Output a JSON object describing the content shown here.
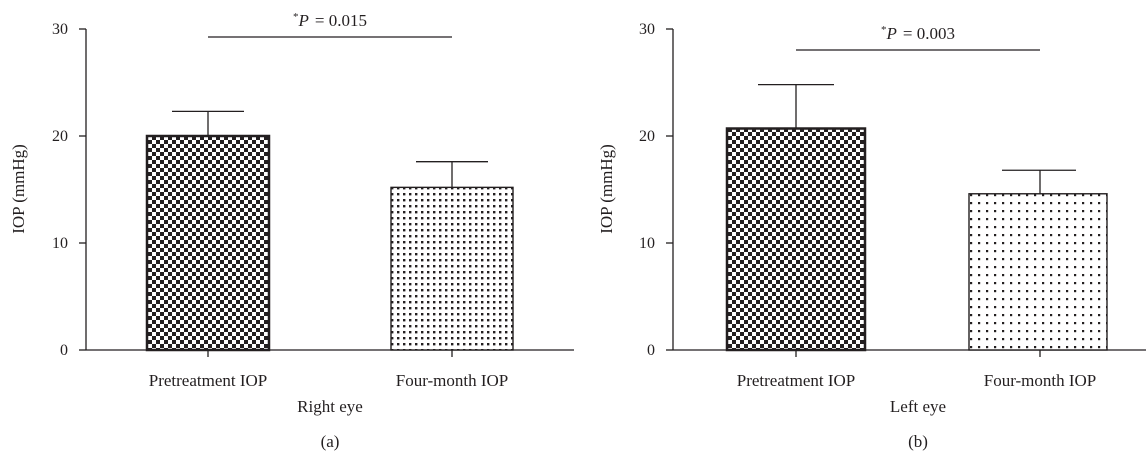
{
  "chart_data": [
    {
      "type": "bar",
      "panel_label": "(a)",
      "xlabel": "Right eye",
      "ylabel": "IOP (mmHg)",
      "ylim": [
        0,
        30
      ],
      "yticks": [
        "0",
        "10",
        "20",
        "30"
      ],
      "categories": [
        "Pretreatment IOP",
        "Four-month IOP"
      ],
      "values": [
        20.0,
        15.2
      ],
      "error_upper": [
        2.3,
        2.4
      ],
      "patterns": [
        "checkerboard",
        "dots-dense"
      ],
      "annotation": {
        "prefix": "*",
        "p_symbol": "P",
        "value_text": "= 0.015"
      }
    },
    {
      "type": "bar",
      "panel_label": "(b)",
      "xlabel": "Left eye",
      "ylabel": "IOP (mmHg)",
      "ylim": [
        0,
        30
      ],
      "yticks": [
        "0",
        "10",
        "20",
        "30"
      ],
      "categories": [
        "Pretreatment IOP",
        "Four-month IOP"
      ],
      "values": [
        20.7,
        14.6
      ],
      "error_upper": [
        4.1,
        2.2
      ],
      "patterns": [
        "checkerboard",
        "dots-sparse"
      ],
      "annotation": {
        "prefix": "*",
        "p_symbol": "P",
        "value_text": "= 0.003"
      }
    }
  ],
  "colors": {
    "ink": "#231f20",
    "background": "#ffffff"
  }
}
